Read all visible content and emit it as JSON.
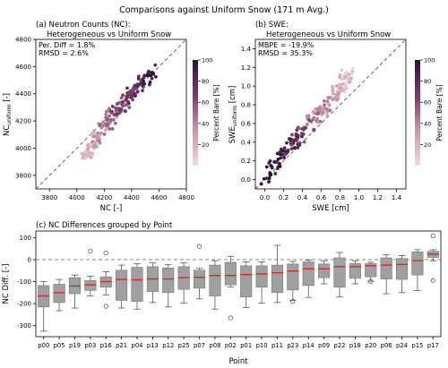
{
  "figure": {
    "suptitle": "Comparisons against Uniform Snow (171 m Avg.)"
  },
  "colorbar": {
    "label": "Percent Bare [%]",
    "ticks": [
      "20",
      "40",
      "60",
      "80",
      "100"
    ],
    "low_color": "#f1dcdc",
    "high_color": "#2a1137"
  },
  "chart_data": [
    {
      "type": "scatter",
      "panel": "a",
      "title": "(a) Neutron Counts (NC):",
      "subtitle": "Heterogeneous vs Uniform Snow",
      "stats": [
        "Per. Diff = 1.8%",
        "RMSD = 2.6%"
      ],
      "xlabel": "NC [-]",
      "ylabel": "NC",
      "ylabel_sub": "uniform",
      "ylabel_unit": " [-]",
      "xlim": [
        3700,
        4800
      ],
      "ylim": [
        3700,
        4800
      ],
      "xticks": [
        "3800",
        "4000",
        "4200",
        "4400",
        "4600",
        "4800"
      ],
      "yticks": [
        "3800",
        "4000",
        "4200",
        "4400",
        "4600",
        "4800"
      ],
      "one_to_one_line": true,
      "cluster_summary": [
        {
          "x": 4060,
          "y": 3940,
          "percent_bare": 12
        },
        {
          "x": 4180,
          "y": 4130,
          "percent_bare": 40
        },
        {
          "x": 4300,
          "y": 4280,
          "percent_bare": 60
        },
        {
          "x": 4420,
          "y": 4420,
          "percent_bare": 75
        },
        {
          "x": 4560,
          "y": 4580,
          "percent_bare": 95
        }
      ]
    },
    {
      "type": "scatter",
      "panel": "b",
      "title": "(b) SWE:",
      "subtitle": "Heterogeneous vs Uniform Snow",
      "stats": [
        "MBPE = -19.9%",
        "RMSD = 35.3%"
      ],
      "xlabel": "SWE [cm]",
      "ylabel": "SWE",
      "ylabel_sub": "uniform",
      "ylabel_unit": " [cm]",
      "xlim": [
        -0.1,
        1.5
      ],
      "ylim": [
        -0.1,
        1.5
      ],
      "xticks": [
        "0.0",
        "0.2",
        "0.4",
        "0.6",
        "0.8",
        "1.0",
        "1.2",
        "1.4"
      ],
      "yticks": [
        "0.0",
        "0.2",
        "0.4",
        "0.6",
        "0.8",
        "1.0",
        "1.2",
        "1.4"
      ],
      "one_to_one_line": true,
      "cluster_summary": [
        {
          "x": 0.0,
          "y": 0.0,
          "percent_bare": 100
        },
        {
          "x": 0.25,
          "y": 0.35,
          "percent_bare": 85
        },
        {
          "x": 0.45,
          "y": 0.55,
          "percent_bare": 55
        },
        {
          "x": 0.75,
          "y": 0.9,
          "percent_bare": 25
        },
        {
          "x": 0.9,
          "y": 1.15,
          "percent_bare": 10
        }
      ]
    },
    {
      "type": "box",
      "panel": "c",
      "title": "(c) NC Differences grouped by Point",
      "xlabel": "Point",
      "ylabel": "NC Diff. [-]",
      "ylim": [
        -350,
        130
      ],
      "yticks": [
        -300,
        -200,
        -100,
        0,
        100
      ],
      "zero_line": true,
      "box_color": "#a0a0a0",
      "median_color": "#d62728",
      "categories": [
        "p00",
        "p05",
        "p19",
        "p03",
        "p16",
        "p21",
        "p04",
        "p13",
        "p12",
        "p25",
        "p07",
        "p08",
        "p02",
        "p01",
        "p10",
        "p11",
        "p23",
        "p14",
        "p09",
        "p22",
        "p18",
        "p20",
        "p06",
        "p24",
        "p15",
        "p17"
      ],
      "boxes": [
        {
          "q1": -215,
          "median": -165,
          "q3": -118,
          "whislo": -325,
          "whishi": -100,
          "fliers": []
        },
        {
          "q1": -195,
          "median": -150,
          "q3": -112,
          "whislo": -232,
          "whishi": -90,
          "fliers": []
        },
        {
          "q1": -155,
          "median": -120,
          "q3": -82,
          "whislo": -220,
          "whishi": -70,
          "fliers": []
        },
        {
          "q1": -140,
          "median": -115,
          "q3": -95,
          "whislo": -165,
          "whishi": -75,
          "fliers": [
            38
          ]
        },
        {
          "q1": -125,
          "median": -100,
          "q3": -78,
          "whislo": -160,
          "whishi": -55,
          "fliers": [
            30,
            -212
          ]
        },
        {
          "q1": -185,
          "median": -90,
          "q3": -48,
          "whislo": -220,
          "whishi": -25,
          "fliers": []
        },
        {
          "q1": -190,
          "median": -92,
          "q3": -35,
          "whislo": -225,
          "whishi": -18,
          "fliers": []
        },
        {
          "q1": -145,
          "median": -88,
          "q3": -32,
          "whislo": -195,
          "whishi": -15,
          "fliers": []
        },
        {
          "q1": -150,
          "median": -88,
          "q3": -38,
          "whislo": -215,
          "whishi": -22,
          "fliers": []
        },
        {
          "q1": -135,
          "median": -82,
          "q3": -32,
          "whislo": -198,
          "whishi": -15,
          "fliers": []
        },
        {
          "q1": -130,
          "median": -80,
          "q3": -48,
          "whislo": -178,
          "whishi": -40,
          "fliers": [
            60
          ]
        },
        {
          "q1": -165,
          "median": -72,
          "q3": -25,
          "whislo": -225,
          "whishi": -5,
          "fliers": []
        },
        {
          "q1": -115,
          "median": -72,
          "q3": -12,
          "whislo": -125,
          "whishi": 15,
          "fliers": [
            -265
          ]
        },
        {
          "q1": -170,
          "median": -68,
          "q3": -28,
          "whislo": -218,
          "whishi": -10,
          "fliers": []
        },
        {
          "q1": -125,
          "median": -65,
          "q3": -28,
          "whislo": -198,
          "whishi": -10,
          "fliers": []
        },
        {
          "q1": -150,
          "median": -60,
          "q3": -25,
          "whislo": -195,
          "whishi": 65,
          "fliers": []
        },
        {
          "q1": -138,
          "median": -52,
          "q3": -20,
          "whislo": -185,
          "whishi": -8,
          "fliers": [
            -190
          ]
        },
        {
          "q1": -118,
          "median": -42,
          "q3": -10,
          "whislo": -172,
          "whishi": -2,
          "fliers": []
        },
        {
          "q1": -82,
          "median": -42,
          "q3": -20,
          "whislo": -110,
          "whishi": -5,
          "fliers": []
        },
        {
          "q1": -125,
          "median": -32,
          "q3": 8,
          "whislo": -170,
          "whishi": 32,
          "fliers": []
        },
        {
          "q1": -85,
          "median": -32,
          "q3": -18,
          "whislo": -110,
          "whishi": -5,
          "fliers": []
        },
        {
          "q1": -78,
          "median": -28,
          "q3": -18,
          "whislo": -98,
          "whishi": -12,
          "fliers": [
            -100
          ]
        },
        {
          "q1": -88,
          "median": -25,
          "q3": 8,
          "whislo": -155,
          "whishi": 22,
          "fliers": []
        },
        {
          "q1": -90,
          "median": -22,
          "q3": 5,
          "whislo": -150,
          "whishi": 18,
          "fliers": []
        },
        {
          "q1": -70,
          "median": -5,
          "q3": 35,
          "whislo": -140,
          "whishi": 45,
          "fliers": []
        },
        {
          "q1": 10,
          "median": 25,
          "q3": 38,
          "whislo": -5,
          "whishi": 45,
          "fliers": [
            108,
            -95
          ]
        }
      ]
    }
  ]
}
